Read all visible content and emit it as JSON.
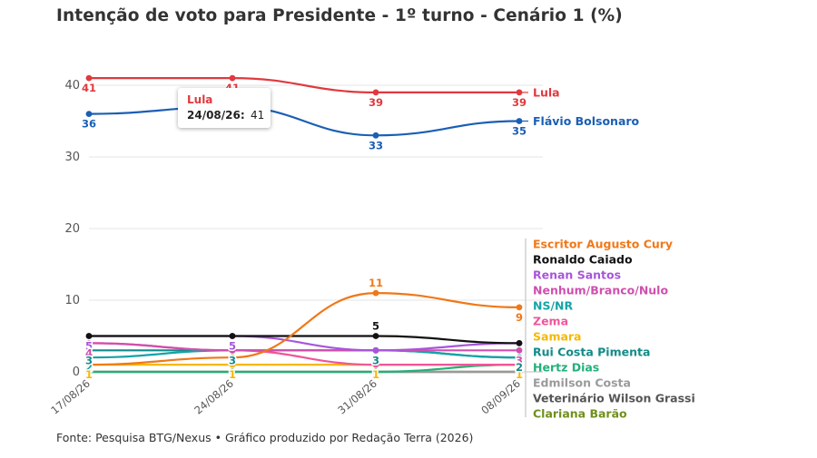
{
  "source": "Fonte: Pesquisa BTG/Nexus • Gráfico produzido por Redação Terra (2026)",
  "tooltip": {
    "series": "Lula",
    "date_label": "24/08/26:",
    "value": "41"
  },
  "chart_data": {
    "type": "line",
    "title": "Intenção de voto para Presidente - 1º turno - Cenário 1 (%)",
    "xlabel": "",
    "ylabel": "",
    "categories": [
      "17/08/26",
      "24/08/26",
      "31/08/26",
      "08/09/26"
    ],
    "ylim": [
      0,
      45
    ],
    "yticks": [
      0,
      10,
      20,
      30,
      40
    ],
    "grid": true,
    "legend": "right",
    "series": [
      {
        "name": "Lula",
        "color": "#e0393e",
        "values": [
          41,
          41,
          39,
          39
        ]
      },
      {
        "name": "Flávio Bolsonaro",
        "color": "#1a5fb4",
        "values": [
          36,
          37,
          33,
          35
        ]
      },
      {
        "name": "Escritor Augusto Cury",
        "color": "#f07818",
        "values": [
          1,
          2,
          11,
          9
        ]
      },
      {
        "name": "Ronaldo Caiado",
        "color": "#111111",
        "values": [
          5,
          5,
          5,
          4
        ]
      },
      {
        "name": "Renan Santos",
        "color": "#a855d9",
        "values": [
          5,
          5,
          3,
          4
        ]
      },
      {
        "name": "Nenhum/Branco/Nulo",
        "color": "#cf4fae",
        "values": [
          4,
          3,
          3,
          3
        ]
      },
      {
        "name": "NS/NR",
        "color": "#16a3a6",
        "values": [
          2,
          3,
          3,
          2
        ]
      },
      {
        "name": "Zema",
        "color": "#f0559a",
        "values": [
          4,
          3,
          1,
          1
        ]
      },
      {
        "name": "Samara",
        "color": "#f5b800",
        "values": [
          1,
          1,
          1,
          1
        ]
      },
      {
        "name": "Rui Costa Pimenta",
        "color": "#138a8a",
        "values": [
          3,
          3,
          3,
          2
        ]
      },
      {
        "name": "Hertz Dias",
        "color": "#22b07a",
        "values": [
          0,
          0,
          0,
          1
        ]
      },
      {
        "name": "Edmilson Costa",
        "color": "#9a9a9a",
        "values": [
          0,
          0,
          0,
          0
        ]
      },
      {
        "name": "Veterinário Wilson Grassi",
        "color": "#555555",
        "values": [
          0,
          0,
          0,
          0
        ]
      },
      {
        "name": "Clariana Barão",
        "color": "#6f8f1c",
        "values": [
          0,
          0,
          0,
          0
        ]
      }
    ]
  }
}
